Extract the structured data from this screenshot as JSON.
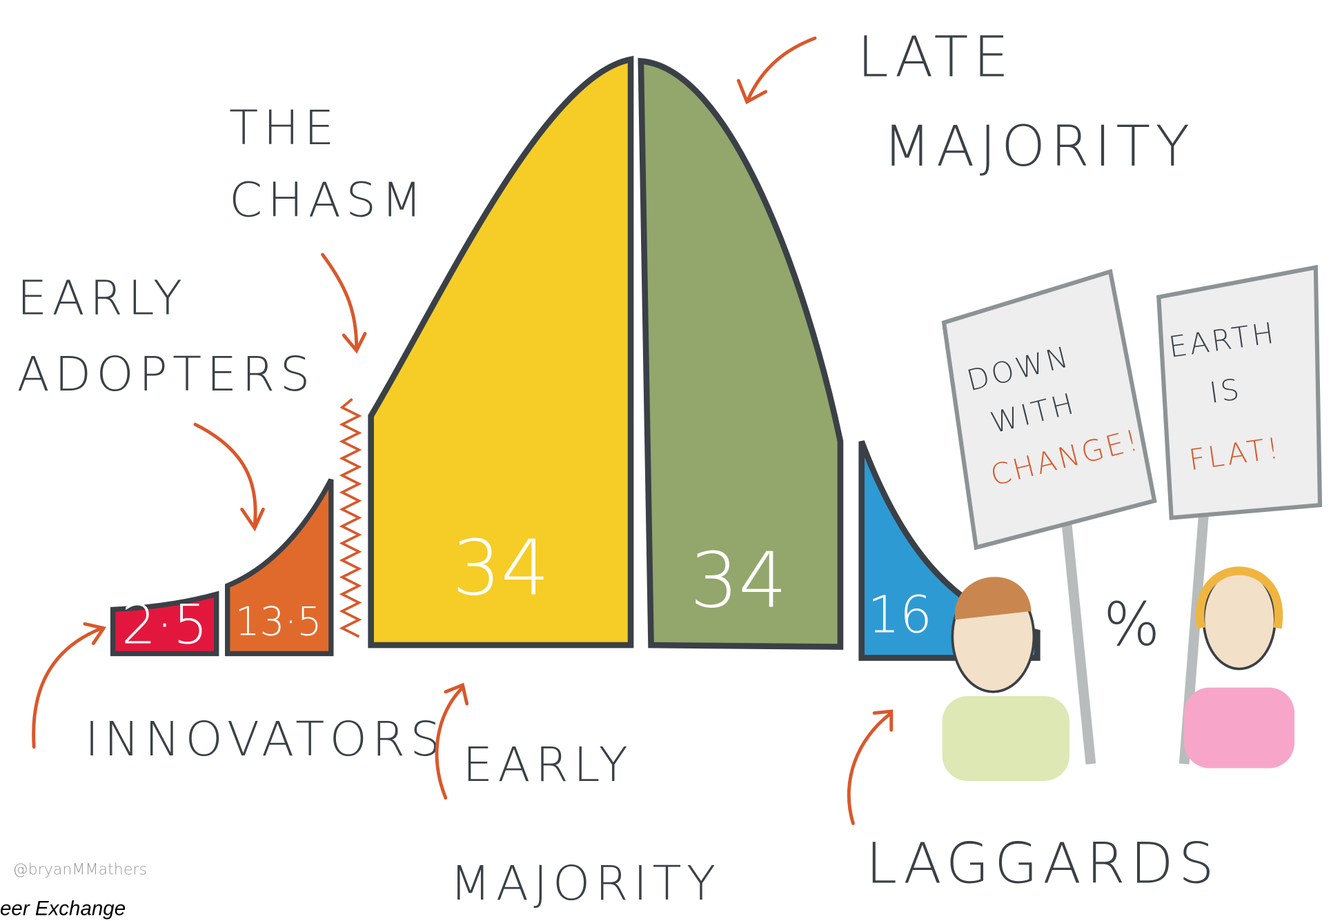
{
  "segments": [
    {
      "label": [
        "INNOVATORS"
      ],
      "value": "2·5"
    },
    {
      "label": [
        "EARLY",
        "ADOPTERS"
      ],
      "value": "13·5"
    },
    {
      "label": [
        "EARLY",
        "MAJORITY"
      ],
      "value": "34"
    },
    {
      "label": [
        "LATE",
        "MAJORITY"
      ],
      "value": "34"
    },
    {
      "label": [
        "LAGGARDS"
      ],
      "value": "16"
    }
  ],
  "chasm": [
    "THE",
    "CHASM"
  ],
  "signs": [
    [
      "DOWN",
      "WITH",
      "CHANGE!"
    ],
    [
      "EARTH",
      "IS",
      "FLAT!"
    ]
  ],
  "percent": "%",
  "credit": "@bryanMMathers",
  "footer": "eer Exchange"
}
